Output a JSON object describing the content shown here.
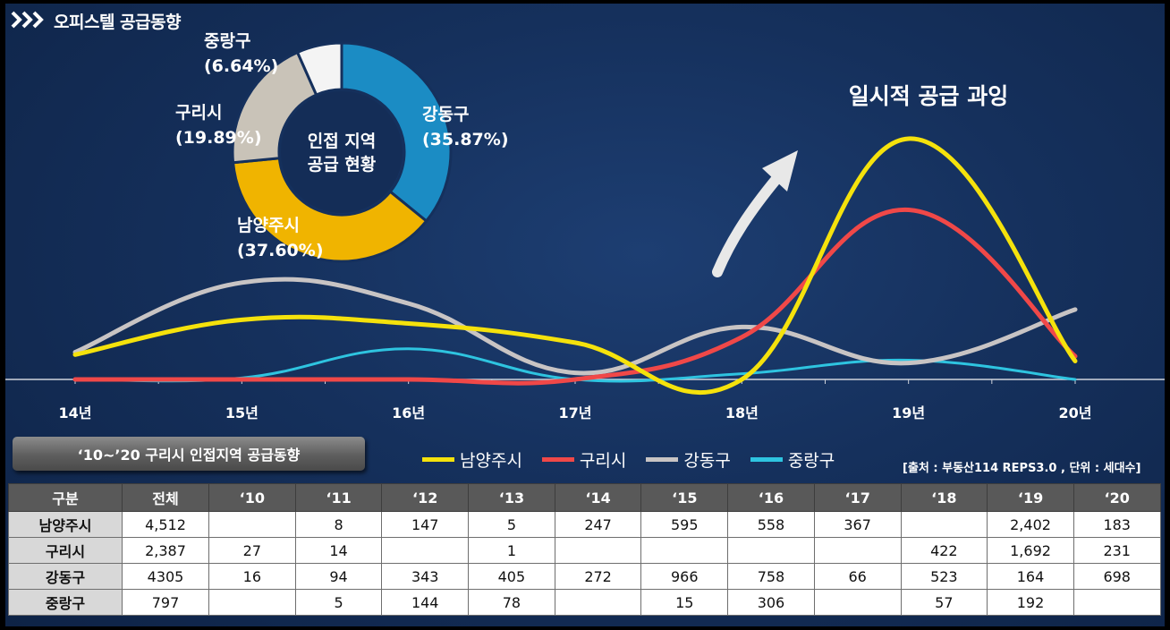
{
  "header": {
    "title": "오피스텔 공급동향"
  },
  "donut": {
    "center_line1": "인접 지역",
    "center_line2": "공급 현황",
    "slices": [
      {
        "name": "강동구",
        "pct_label": "(35.87%)",
        "value": 35.87,
        "color": "#1b8cc4"
      },
      {
        "name": "남양주시",
        "pct_label": "(37.60%)",
        "value": 37.6,
        "color": "#f0b400"
      },
      {
        "name": "구리시",
        "pct_label": "(19.89%)",
        "value": 19.89,
        "color": "#c9c3b8"
      },
      {
        "name": "중랑구",
        "pct_label": "(6.64%)",
        "value": 6.64,
        "color": "#f4f4f4"
      }
    ]
  },
  "annotation": "일시적 공급 과잉",
  "table_title": "‘10~’20 구리시 인접지역 공급동향",
  "source": "[출처 : 부동산114 REPS3.0 , 단위 : 세대수]",
  "chart_data": {
    "type": "line",
    "title": "",
    "xlabel": "",
    "ylabel": "",
    "categories": [
      "14년",
      "15년",
      "16년",
      "17년",
      "18년",
      "19년",
      "20년"
    ],
    "ylim": [
      0,
      2500
    ],
    "smooth": true,
    "series": [
      {
        "name": "남양주시",
        "color": "#f5e20c",
        "values": [
          247,
          595,
          558,
          367,
          0,
          2402,
          183
        ]
      },
      {
        "name": "구리시",
        "color": "#f04848",
        "values": [
          0,
          0,
          0,
          0,
          422,
          1692,
          231
        ]
      },
      {
        "name": "강동구",
        "color": "#c8c4c4",
        "values": [
          272,
          966,
          758,
          66,
          523,
          164,
          698
        ]
      },
      {
        "name": "중랑구",
        "color": "#2ec4e0",
        "values": [
          0,
          15,
          306,
          0,
          57,
          192,
          0
        ]
      }
    ]
  },
  "table": {
    "headers": [
      "구분",
      "전체",
      "‘10",
      "‘11",
      "‘12",
      "‘13",
      "‘14",
      "‘15",
      "‘16",
      "‘17",
      "‘18",
      "‘19",
      "‘20"
    ],
    "rows": [
      [
        "남양주시",
        "4,512",
        "",
        "8",
        "147",
        "5",
        "247",
        "595",
        "558",
        "367",
        "",
        "2,402",
        "183"
      ],
      [
        "구리시",
        "2,387",
        "27",
        "14",
        "",
        "1",
        "",
        "",
        "",
        "",
        "422",
        "1,692",
        "231"
      ],
      [
        "강동구",
        "4305",
        "16",
        "94",
        "343",
        "405",
        "272",
        "966",
        "758",
        "66",
        "523",
        "164",
        "698"
      ],
      [
        "중랑구",
        "797",
        "",
        "5",
        "144",
        "78",
        "",
        "15",
        "306",
        "",
        "57",
        "192",
        ""
      ]
    ]
  }
}
